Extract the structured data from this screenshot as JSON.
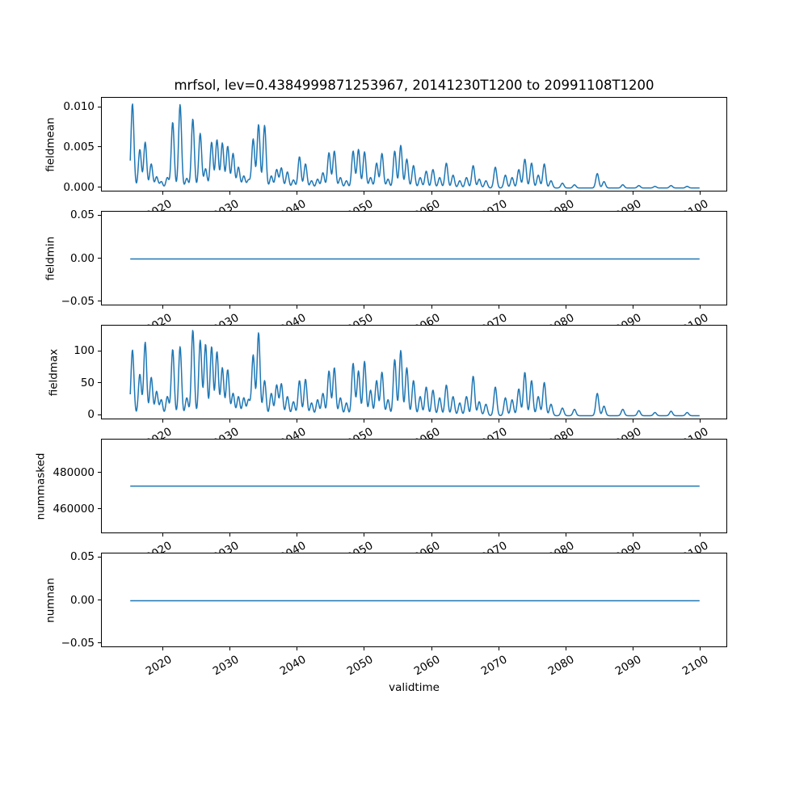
{
  "title": "mrfsol, lev=0.4384999871253967, 20141230T1200 to 20991108T1200",
  "line_color": "#1f77b4",
  "chart_data": {
    "type": "line",
    "title": "mrfsol, lev=0.4384999871253967, 20141230T1200 to 20991108T1200",
    "xlabel": "validtime",
    "x_axis": {
      "lim": [
        2010.73,
        2104.09
      ],
      "data_range": [
        2014.97,
        2099.85
      ],
      "ticks": [
        {
          "v": 2020,
          "label": "2020"
        },
        {
          "v": 2030,
          "label": "2030"
        },
        {
          "v": 2040,
          "label": "2040"
        },
        {
          "v": 2050,
          "label": "2050"
        },
        {
          "v": 2060,
          "label": "2060"
        },
        {
          "v": 2070,
          "label": "2070"
        },
        {
          "v": 2080,
          "label": "2080"
        },
        {
          "v": 2090,
          "label": "2090"
        },
        {
          "v": 2100,
          "label": "2100"
        }
      ]
    },
    "subplots": [
      {
        "name": "fieldmean",
        "ylabel": "fieldmean",
        "ylim": [
          -0.00054,
          0.01124
        ],
        "ylabel_x": 62,
        "yticks": [
          {
            "v": 0.0,
            "label": "0.000"
          },
          {
            "v": 0.005,
            "label": "0.005"
          },
          {
            "v": 0.01,
            "label": "0.010"
          }
        ],
        "peaks": [
          [
            2015.3,
            0.0105
          ],
          [
            2016.4,
            0.0048
          ],
          [
            2017.2,
            0.0057
          ],
          [
            2018.1,
            0.003
          ],
          [
            2018.9,
            0.0014
          ],
          [
            2019.6,
            0.0008
          ],
          [
            2020.5,
            0.0013
          ],
          [
            2021.3,
            0.0082
          ],
          [
            2022.4,
            0.0104
          ],
          [
            2023.4,
            0.0012
          ],
          [
            2024.3,
            0.0086
          ],
          [
            2025.4,
            0.0068
          ],
          [
            2026.2,
            0.0024
          ],
          [
            2027.1,
            0.0057
          ],
          [
            2027.9,
            0.006
          ],
          [
            2028.7,
            0.0056
          ],
          [
            2029.5,
            0.0052
          ],
          [
            2030.3,
            0.0043
          ],
          [
            2031.1,
            0.0026
          ],
          [
            2031.9,
            0.0015
          ],
          [
            2032.6,
            0.001
          ],
          [
            2033.3,
            0.0061
          ],
          [
            2034.1,
            0.0079
          ],
          [
            2035.0,
            0.0078
          ],
          [
            2036.0,
            0.0015
          ],
          [
            2036.8,
            0.0023
          ],
          [
            2037.5,
            0.0025
          ],
          [
            2038.4,
            0.002
          ],
          [
            2039.3,
            0.001
          ],
          [
            2040.2,
            0.0039
          ],
          [
            2041.1,
            0.003
          ],
          [
            2042.0,
            0.0009
          ],
          [
            2042.9,
            0.0011
          ],
          [
            2043.7,
            0.0019
          ],
          [
            2044.6,
            0.0044
          ],
          [
            2045.4,
            0.0046
          ],
          [
            2046.3,
            0.0013
          ],
          [
            2047.2,
            0.0009
          ],
          [
            2048.2,
            0.0046
          ],
          [
            2049.0,
            0.0048
          ],
          [
            2049.9,
            0.0045
          ],
          [
            2050.8,
            0.0013
          ],
          [
            2051.7,
            0.0031
          ],
          [
            2052.5,
            0.0043
          ],
          [
            2053.4,
            0.0011
          ],
          [
            2054.4,
            0.0046
          ],
          [
            2055.3,
            0.0053
          ],
          [
            2056.2,
            0.0036
          ],
          [
            2057.2,
            0.0028
          ],
          [
            2058.2,
            0.0013
          ],
          [
            2059.1,
            0.0021
          ],
          [
            2060.1,
            0.0023
          ],
          [
            2061.1,
            0.0013
          ],
          [
            2062.1,
            0.0031
          ],
          [
            2063.1,
            0.0016
          ],
          [
            2064.1,
            0.0009
          ],
          [
            2065.1,
            0.0013
          ],
          [
            2066.1,
            0.0028
          ],
          [
            2067.0,
            0.0011
          ],
          [
            2068.0,
            0.0009
          ],
          [
            2069.4,
            0.0026
          ],
          [
            2070.9,
            0.0016
          ],
          [
            2071.9,
            0.0013
          ],
          [
            2072.9,
            0.0023
          ],
          [
            2073.8,
            0.0036
          ],
          [
            2074.8,
            0.0031
          ],
          [
            2075.8,
            0.0016
          ],
          [
            2076.7,
            0.003
          ],
          [
            2077.7,
            0.0009
          ],
          [
            2079.4,
            0.0006
          ],
          [
            2081.2,
            0.0004
          ],
          [
            2084.6,
            0.0018
          ],
          [
            2085.6,
            0.0008
          ],
          [
            2088.4,
            0.0004
          ],
          [
            2090.8,
            0.0003
          ],
          [
            2093.2,
            0.0002
          ],
          [
            2095.6,
            0.0003
          ],
          [
            2098.0,
            0.0002
          ]
        ]
      },
      {
        "name": "fieldmin",
        "ylabel": "fieldmin",
        "ylim": [
          -0.055,
          0.055
        ],
        "ylabel_x": 62,
        "yticks": [
          {
            "v": -0.05,
            "label": "−0.05"
          },
          {
            "v": 0.0,
            "label": "0.00"
          },
          {
            "v": 0.05,
            "label": "0.05"
          }
        ],
        "constant": 0.0
      },
      {
        "name": "fieldmax",
        "ylabel": "fieldmax",
        "ylim": [
          -7,
          141
        ],
        "ylabel_x": 66,
        "yticks": [
          {
            "v": 0,
            "label": "0"
          },
          {
            "v": 50,
            "label": "50"
          },
          {
            "v": 100,
            "label": "100"
          }
        ],
        "peaks": [
          [
            2015.3,
            103
          ],
          [
            2016.4,
            65
          ],
          [
            2017.2,
            115
          ],
          [
            2018.1,
            60
          ],
          [
            2018.9,
            38
          ],
          [
            2019.6,
            25
          ],
          [
            2020.5,
            30
          ],
          [
            2021.3,
            104
          ],
          [
            2022.4,
            108
          ],
          [
            2023.4,
            28
          ],
          [
            2024.3,
            134
          ],
          [
            2025.4,
            118
          ],
          [
            2026.2,
            112
          ],
          [
            2027.1,
            108
          ],
          [
            2027.9,
            100
          ],
          [
            2028.7,
            75
          ],
          [
            2029.5,
            72
          ],
          [
            2030.3,
            35
          ],
          [
            2031.1,
            30
          ],
          [
            2031.9,
            28
          ],
          [
            2032.6,
            25
          ],
          [
            2033.3,
            95
          ],
          [
            2034.1,
            130
          ],
          [
            2035.0,
            55
          ],
          [
            2036.0,
            35
          ],
          [
            2036.8,
            48
          ],
          [
            2037.5,
            50
          ],
          [
            2038.4,
            30
          ],
          [
            2039.3,
            22
          ],
          [
            2040.2,
            55
          ],
          [
            2041.1,
            57
          ],
          [
            2042.0,
            20
          ],
          [
            2042.9,
            25
          ],
          [
            2043.7,
            35
          ],
          [
            2044.6,
            70
          ],
          [
            2045.4,
            75
          ],
          [
            2046.3,
            28
          ],
          [
            2047.2,
            20
          ],
          [
            2048.2,
            82
          ],
          [
            2049.0,
            70
          ],
          [
            2049.9,
            85
          ],
          [
            2050.8,
            40
          ],
          [
            2051.7,
            55
          ],
          [
            2052.5,
            68
          ],
          [
            2053.4,
            25
          ],
          [
            2054.4,
            88
          ],
          [
            2055.3,
            102
          ],
          [
            2056.2,
            75
          ],
          [
            2057.2,
            55
          ],
          [
            2058.2,
            30
          ],
          [
            2059.1,
            45
          ],
          [
            2060.1,
            40
          ],
          [
            2061.1,
            28
          ],
          [
            2062.1,
            48
          ],
          [
            2063.1,
            30
          ],
          [
            2064.1,
            20
          ],
          [
            2065.1,
            30
          ],
          [
            2066.1,
            62
          ],
          [
            2067.0,
            22
          ],
          [
            2068.0,
            18
          ],
          [
            2069.4,
            45
          ],
          [
            2070.9,
            28
          ],
          [
            2071.9,
            25
          ],
          [
            2072.9,
            42
          ],
          [
            2073.8,
            68
          ],
          [
            2074.8,
            55
          ],
          [
            2075.8,
            30
          ],
          [
            2076.7,
            52
          ],
          [
            2077.7,
            18
          ],
          [
            2079.4,
            12
          ],
          [
            2081.2,
            10
          ],
          [
            2084.6,
            35
          ],
          [
            2085.6,
            15
          ],
          [
            2088.4,
            10
          ],
          [
            2090.8,
            8
          ],
          [
            2093.2,
            5
          ],
          [
            2095.6,
            7
          ],
          [
            2098.0,
            5
          ]
        ]
      },
      {
        "name": "nummasked",
        "ylabel": "nummasked",
        "ylim": [
          446500,
          498500
        ],
        "ylabel_x": 50,
        "yticks": [
          {
            "v": 460000,
            "label": "460000"
          },
          {
            "v": 480000,
            "label": "480000"
          }
        ],
        "constant": 472900
      },
      {
        "name": "numnan",
        "ylabel": "numnan",
        "ylim": [
          -0.055,
          0.055
        ],
        "ylabel_x": 62,
        "yticks": [
          {
            "v": -0.05,
            "label": "−0.05"
          },
          {
            "v": 0.0,
            "label": "0.00"
          },
          {
            "v": 0.05,
            "label": "0.05"
          }
        ],
        "constant": 0.0
      }
    ]
  }
}
